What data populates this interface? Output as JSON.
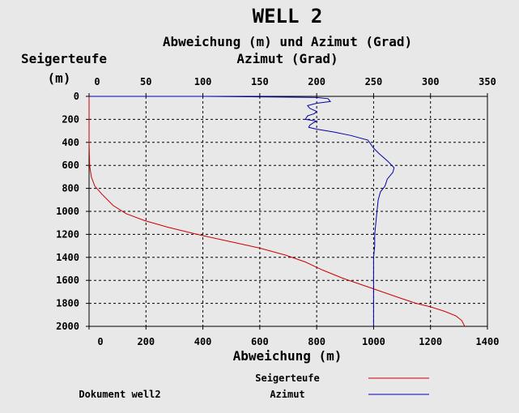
{
  "chart_data": {
    "type": "line",
    "title": "WELL 2",
    "subtitle": "Abweichung (m) und Azimut (Grad)",
    "ylabel": "Seigerteufe",
    "yunit": "(m)",
    "x_top_label": "Azimut (Grad)",
    "xlabel": "Abweichung (m)",
    "ylim": [
      2000,
      0
    ],
    "x_top_lim": [
      0,
      350
    ],
    "x_bottom_lim": [
      0,
      1400
    ],
    "y_ticks": [
      "0",
      "200",
      "400",
      "600",
      "800",
      "1000",
      "1200",
      "1400",
      "1600",
      "1800",
      "2000"
    ],
    "x_top_ticks": [
      "0",
      "50",
      "100",
      "150",
      "200",
      "250",
      "300",
      "350"
    ],
    "x_bottom_ticks": [
      "0",
      "200",
      "400",
      "600",
      "800",
      "1000",
      "1200",
      "1400"
    ],
    "grid": true,
    "legend_placement": "bottom-right",
    "series": [
      {
        "name": "Seigerteufe",
        "axis": "bottom",
        "color": "#cc0000",
        "x": [
          0,
          0,
          0,
          2,
          8,
          20,
          45,
          85,
          130,
          195,
          280,
          380,
          490,
          600,
          690,
          760,
          820,
          890,
          960,
          1030,
          1100,
          1150,
          1200,
          1250,
          1290,
          1310,
          1320
        ],
        "y": [
          0,
          200,
          400,
          600,
          700,
          780,
          850,
          950,
          1020,
          1080,
          1140,
          1200,
          1260,
          1320,
          1380,
          1440,
          1510,
          1580,
          1640,
          1700,
          1760,
          1800,
          1830,
          1870,
          1910,
          1950,
          2000
        ]
      },
      {
        "name": "Azimut",
        "axis": "top",
        "color": "#0000aa",
        "x": [
          0,
          100,
          160,
          200,
          210,
          212,
          200,
          192,
          194,
          200,
          198,
          192,
          190,
          200,
          197,
          194,
          193,
          200,
          215,
          230,
          245,
          250,
          255,
          262,
          268,
          267,
          262,
          260,
          256,
          254,
          253,
          252,
          251,
          251,
          250,
          250,
          250,
          250,
          250
        ],
        "y": [
          0,
          0,
          5,
          10,
          20,
          45,
          60,
          80,
          105,
          130,
          150,
          170,
          200,
          215,
          230,
          250,
          270,
          285,
          310,
          340,
          380,
          450,
          500,
          560,
          620,
          660,
          720,
          780,
          830,
          900,
          1000,
          1100,
          1200,
          1300,
          1400,
          1600,
          1800,
          1900,
          2000
        ]
      }
    ]
  },
  "footer": {
    "document_label": "Dokument well2"
  }
}
